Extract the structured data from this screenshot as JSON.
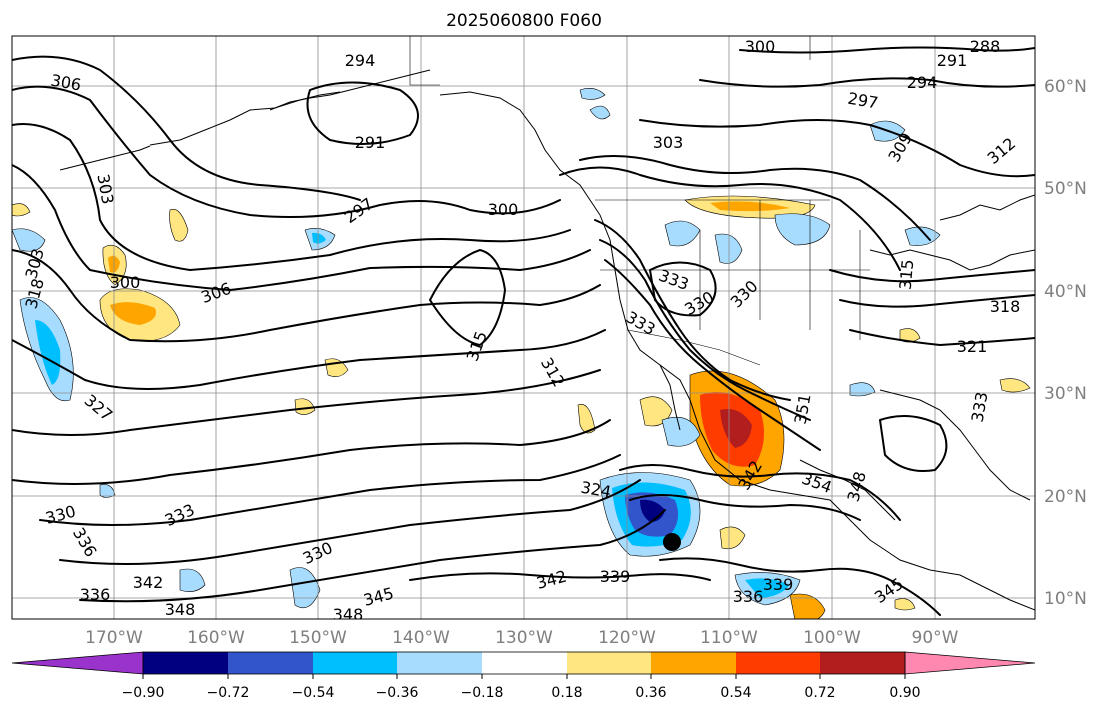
{
  "title": "2025060800 F060",
  "lat_labels": [
    "60°N",
    "50°N",
    "40°N",
    "30°N",
    "20°N",
    "10°N"
  ],
  "lon_labels": [
    "170°W",
    "160°W",
    "150°W",
    "140°W",
    "130°W",
    "120°W",
    "110°W",
    "100°W",
    "90°W"
  ],
  "colorbar": {
    "colors": [
      "#9933cc",
      "#000080",
      "#3355cc",
      "#00bfff",
      "#a8dcff",
      "#ffffff",
      "#ffe680",
      "#ffa500",
      "#ff3c00",
      "#b21e1e",
      "#ff88b0"
    ],
    "ticks": [
      "−0.90",
      "−0.72",
      "−0.54",
      "−0.36",
      "−0.18",
      "0.18",
      "0.36",
      "0.54",
      "0.72",
      "0.90"
    ]
  },
  "contour_labels": [
    "294",
    "300",
    "288",
    "291",
    "306",
    "294",
    "297",
    "291",
    "303",
    "303",
    "309",
    "312",
    "300",
    "297",
    "303",
    "315",
    "318",
    "300",
    "306",
    "333",
    "330",
    "330",
    "333",
    "315",
    "312",
    "318",
    "321",
    "327",
    "351",
    "348",
    "342",
    "354",
    "324",
    "330",
    "333",
    "336",
    "339",
    "342",
    "330",
    "342",
    "345",
    "348",
    "348",
    "336",
    "336",
    "339",
    "345",
    "333"
  ],
  "markers": [
    {
      "name": "storm-center",
      "color": "#000000"
    }
  ]
}
